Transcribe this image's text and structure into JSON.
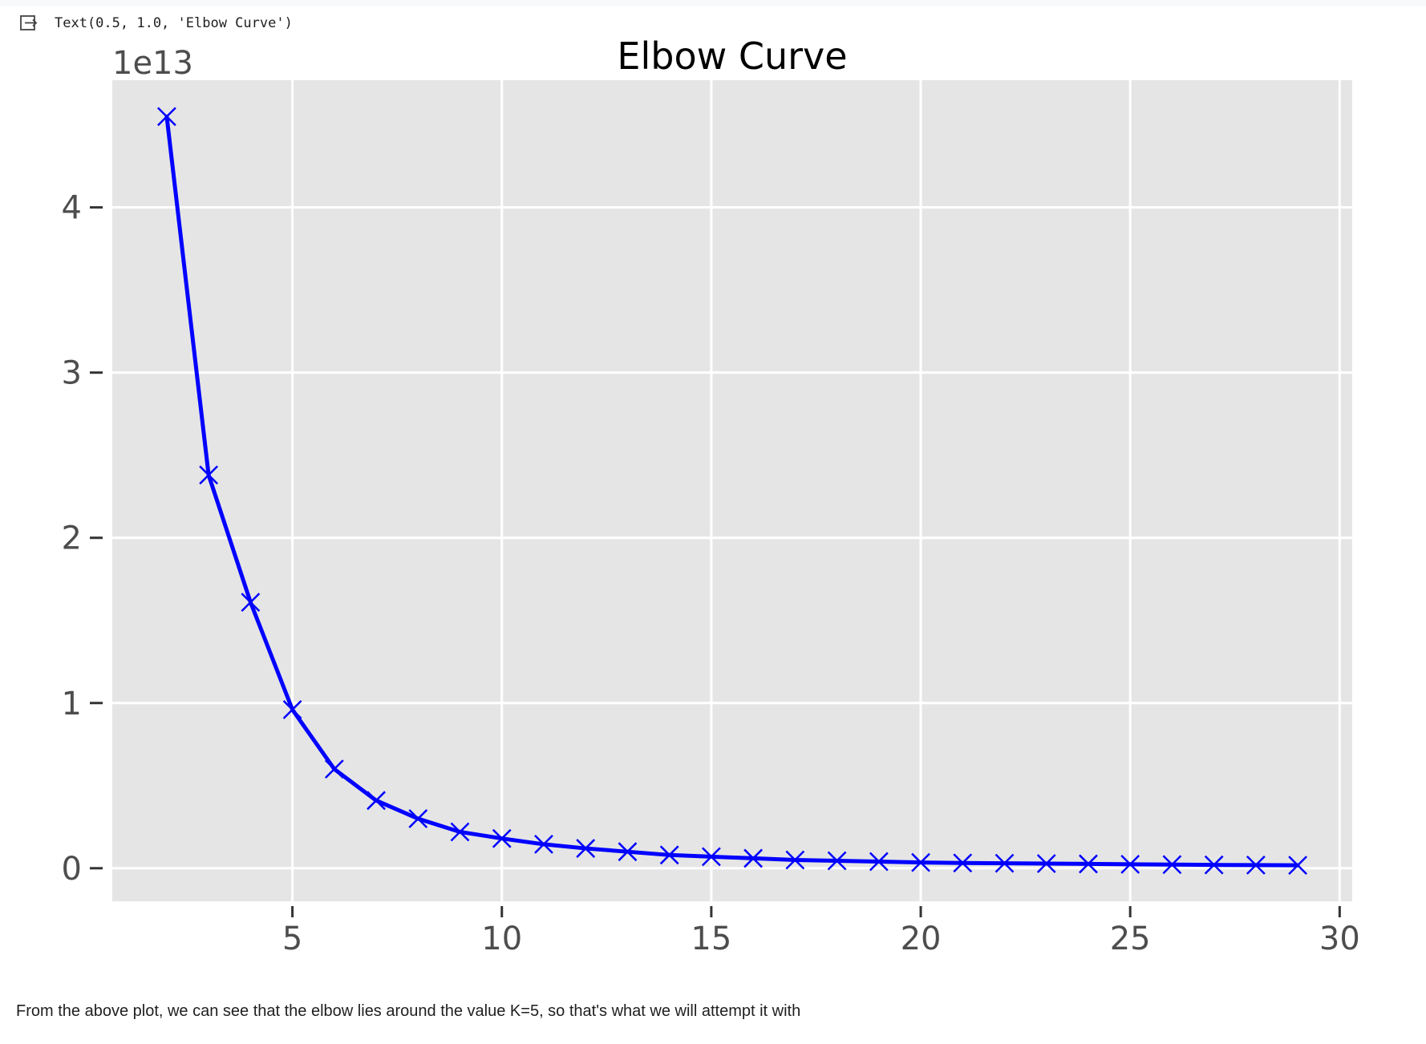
{
  "output_cell": {
    "icon": "output-arrow-icon",
    "text": "Text(0.5, 1.0, 'Elbow Curve')"
  },
  "chart_data": {
    "type": "line",
    "title": "Elbow Curve",
    "xlabel": "",
    "ylabel": "",
    "y_offset_text": "1e13",
    "x": [
      2,
      3,
      4,
      5,
      6,
      7,
      8,
      9,
      10,
      11,
      12,
      13,
      14,
      15,
      16,
      17,
      18,
      19,
      20,
      21,
      22,
      23,
      24,
      25,
      26,
      27,
      28,
      29
    ],
    "series": [
      {
        "values": [
          4.55,
          2.38,
          1.61,
          0.96,
          0.6,
          0.41,
          0.3,
          0.22,
          0.18,
          0.145,
          0.12,
          0.1,
          0.08,
          0.07,
          0.06,
          0.05,
          0.045,
          0.04,
          0.035,
          0.032,
          0.03,
          0.028,
          0.026,
          0.024,
          0.022,
          0.02,
          0.019,
          0.018
        ],
        "color": "#0000ff",
        "marker": "x"
      }
    ],
    "xticks": [
      5,
      10,
      15,
      20,
      25,
      30
    ],
    "yticks": [
      0,
      1,
      2,
      3,
      4
    ],
    "xlim": [
      0.7,
      30.3
    ],
    "ylim": [
      -0.2,
      4.77
    ],
    "grid": true,
    "background": "#e5e5e5",
    "grid_color": "#ffffff"
  },
  "markdown": {
    "text": "From the above plot, we can see that the elbow lies around the value K=5, so that's what we will attempt it with"
  }
}
